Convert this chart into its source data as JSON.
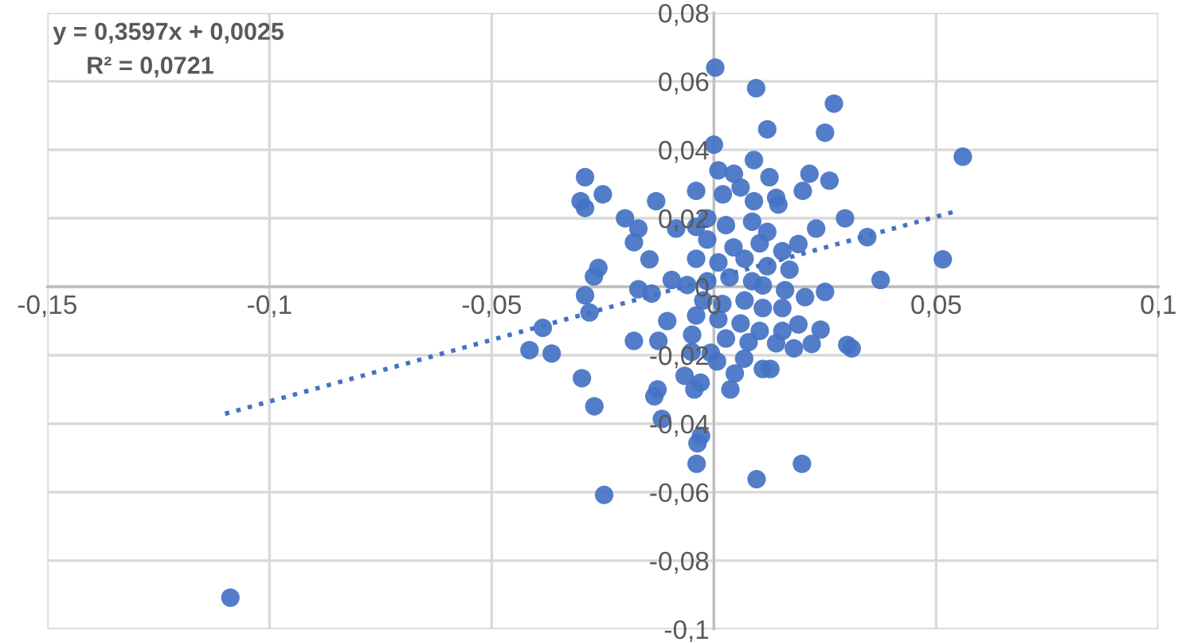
{
  "chart_data": {
    "type": "scatter",
    "annotations": [
      "y = 0,3597x + 0,0025",
      "R² = 0,0721"
    ],
    "xlim": [
      -0.15,
      0.1
    ],
    "xticks": [
      {
        "value": -0.15,
        "label": "-0,15"
      },
      {
        "value": -0.1,
        "label": "-0,1"
      },
      {
        "value": -0.05,
        "label": "-0,05"
      },
      {
        "value": 0,
        "label": "0"
      },
      {
        "value": 0.05,
        "label": "0,05"
      },
      {
        "value": 0.1,
        "label": "0,1"
      }
    ],
    "ylim": [
      -0.1,
      0.08
    ],
    "yticks": [
      {
        "value": -0.1,
        "label": "-0,1"
      },
      {
        "value": -0.08,
        "label": "-0,08"
      },
      {
        "value": -0.06,
        "label": "-0,06"
      },
      {
        "value": -0.04,
        "label": "-0,04"
      },
      {
        "value": -0.02,
        "label": "-0,02"
      },
      {
        "value": 0,
        "label": "0"
      },
      {
        "value": 0.02,
        "label": "0,02"
      },
      {
        "value": 0.04,
        "label": "0,04"
      },
      {
        "value": 0.06,
        "label": "0,06"
      },
      {
        "value": 0.08,
        "label": "0,08"
      }
    ],
    "grid": true,
    "series": [
      {
        "color": "#4472c4",
        "marker": "circle",
        "x": [
          0.0003,
          0.0095,
          0.027,
          0.012,
          0.025,
          0.056,
          0,
          0.009,
          -0.029,
          0.0125,
          0.0215,
          0.026,
          0.001,
          0.0045,
          -0.025,
          -0.03,
          -0.029,
          -0.013,
          -0.004,
          0.014,
          0.0145,
          0.02,
          -0.02,
          0.0295,
          0.023,
          -0.017,
          -0.018,
          -0.0085,
          -0.004,
          0.0345,
          0.019,
          0.0515,
          -0.0145,
          -0.026,
          -0.027,
          0.017,
          0.0375,
          -0.0095,
          -0.006,
          -0.029,
          -0.017,
          -0.014,
          0.025,
          0.0205,
          0.016,
          -0.028,
          -0.0385,
          -0.0105,
          0.024,
          0.019,
          -0.0415,
          -0.0365,
          -0.018,
          -0.0125,
          0.014,
          0.018,
          0.022,
          0.03,
          0.031,
          -0.005,
          -0.0007,
          0.0007,
          0.0068,
          -0.0297,
          -0.0066,
          0.0047,
          0.011,
          0.0127,
          -0.003,
          -0.0127,
          -0.0134,
          -0.0044,
          0.0037,
          -0.0269,
          -0.0117,
          -0.0029,
          -0.0037,
          -0.0039,
          0.0198,
          0.0096,
          -0.0247,
          -0.1088,
          0.002,
          0.006,
          0.009,
          -0.0015,
          0.0027,
          0.0086,
          0.012,
          -0.0015,
          0.0044,
          0.0103,
          0.0154,
          -0.004,
          0.001,
          0.0069,
          0.012,
          -0.0015,
          0.0035,
          0.0086,
          0.011,
          -0.0024,
          0.0019,
          0.0069,
          0.011,
          0.0154,
          -0.004,
          0.001,
          0.006,
          0.0103,
          0.0154,
          -0.0049,
          0.0027,
          0.0078
        ],
        "values": [
          0.064,
          0.058,
          0.0535,
          0.046,
          0.045,
          0.038,
          0.0415,
          0.037,
          0.032,
          0.032,
          0.033,
          0.031,
          0.034,
          0.033,
          0.027,
          0.025,
          0.023,
          0.025,
          0.028,
          0.026,
          0.024,
          0.028,
          0.02,
          0.02,
          0.017,
          0.017,
          0.013,
          0.017,
          0.0175,
          0.0145,
          0.0125,
          0.008,
          0.008,
          0.0055,
          0.003,
          0.005,
          0.002,
          0.002,
          0.0005,
          -0.0025,
          -0.0007,
          -0.002,
          -0.0015,
          -0.003,
          -0.001,
          -0.0075,
          -0.012,
          -0.01,
          -0.0125,
          -0.011,
          -0.0185,
          -0.0195,
          -0.0158,
          -0.0158,
          -0.0165,
          -0.018,
          -0.0167,
          -0.017,
          -0.018,
          -0.019,
          -0.0193,
          -0.0218,
          -0.021,
          -0.0267,
          -0.026,
          -0.0253,
          -0.024,
          -0.024,
          -0.028,
          -0.03,
          -0.032,
          -0.03,
          -0.03,
          -0.0349,
          -0.0386,
          -0.0435,
          -0.0457,
          -0.0517,
          -0.0517,
          -0.0562,
          -0.0608,
          -0.0908,
          0.027,
          0.029,
          0.025,
          0.02,
          0.018,
          0.019,
          0.016,
          0.0138,
          0.0115,
          0.0127,
          0.0104,
          0.0082,
          0.0071,
          0.0082,
          0.006,
          0.0016,
          0.0027,
          0.0016,
          0.0004,
          -0.004,
          -0.005,
          -0.004,
          -0.0062,
          -0.0062,
          -0.0084,
          -0.0095,
          -0.0107,
          -0.0129,
          -0.0129,
          -0.014,
          -0.0151,
          -0.0162
        ]
      },
      {
        "type": "line",
        "color": "#4472c4",
        "line_style": "dotted",
        "marker": "none",
        "x": [
          -0.11,
          0.054
        ],
        "values": [
          -0.0371,
          0.0219
        ]
      }
    ]
  }
}
